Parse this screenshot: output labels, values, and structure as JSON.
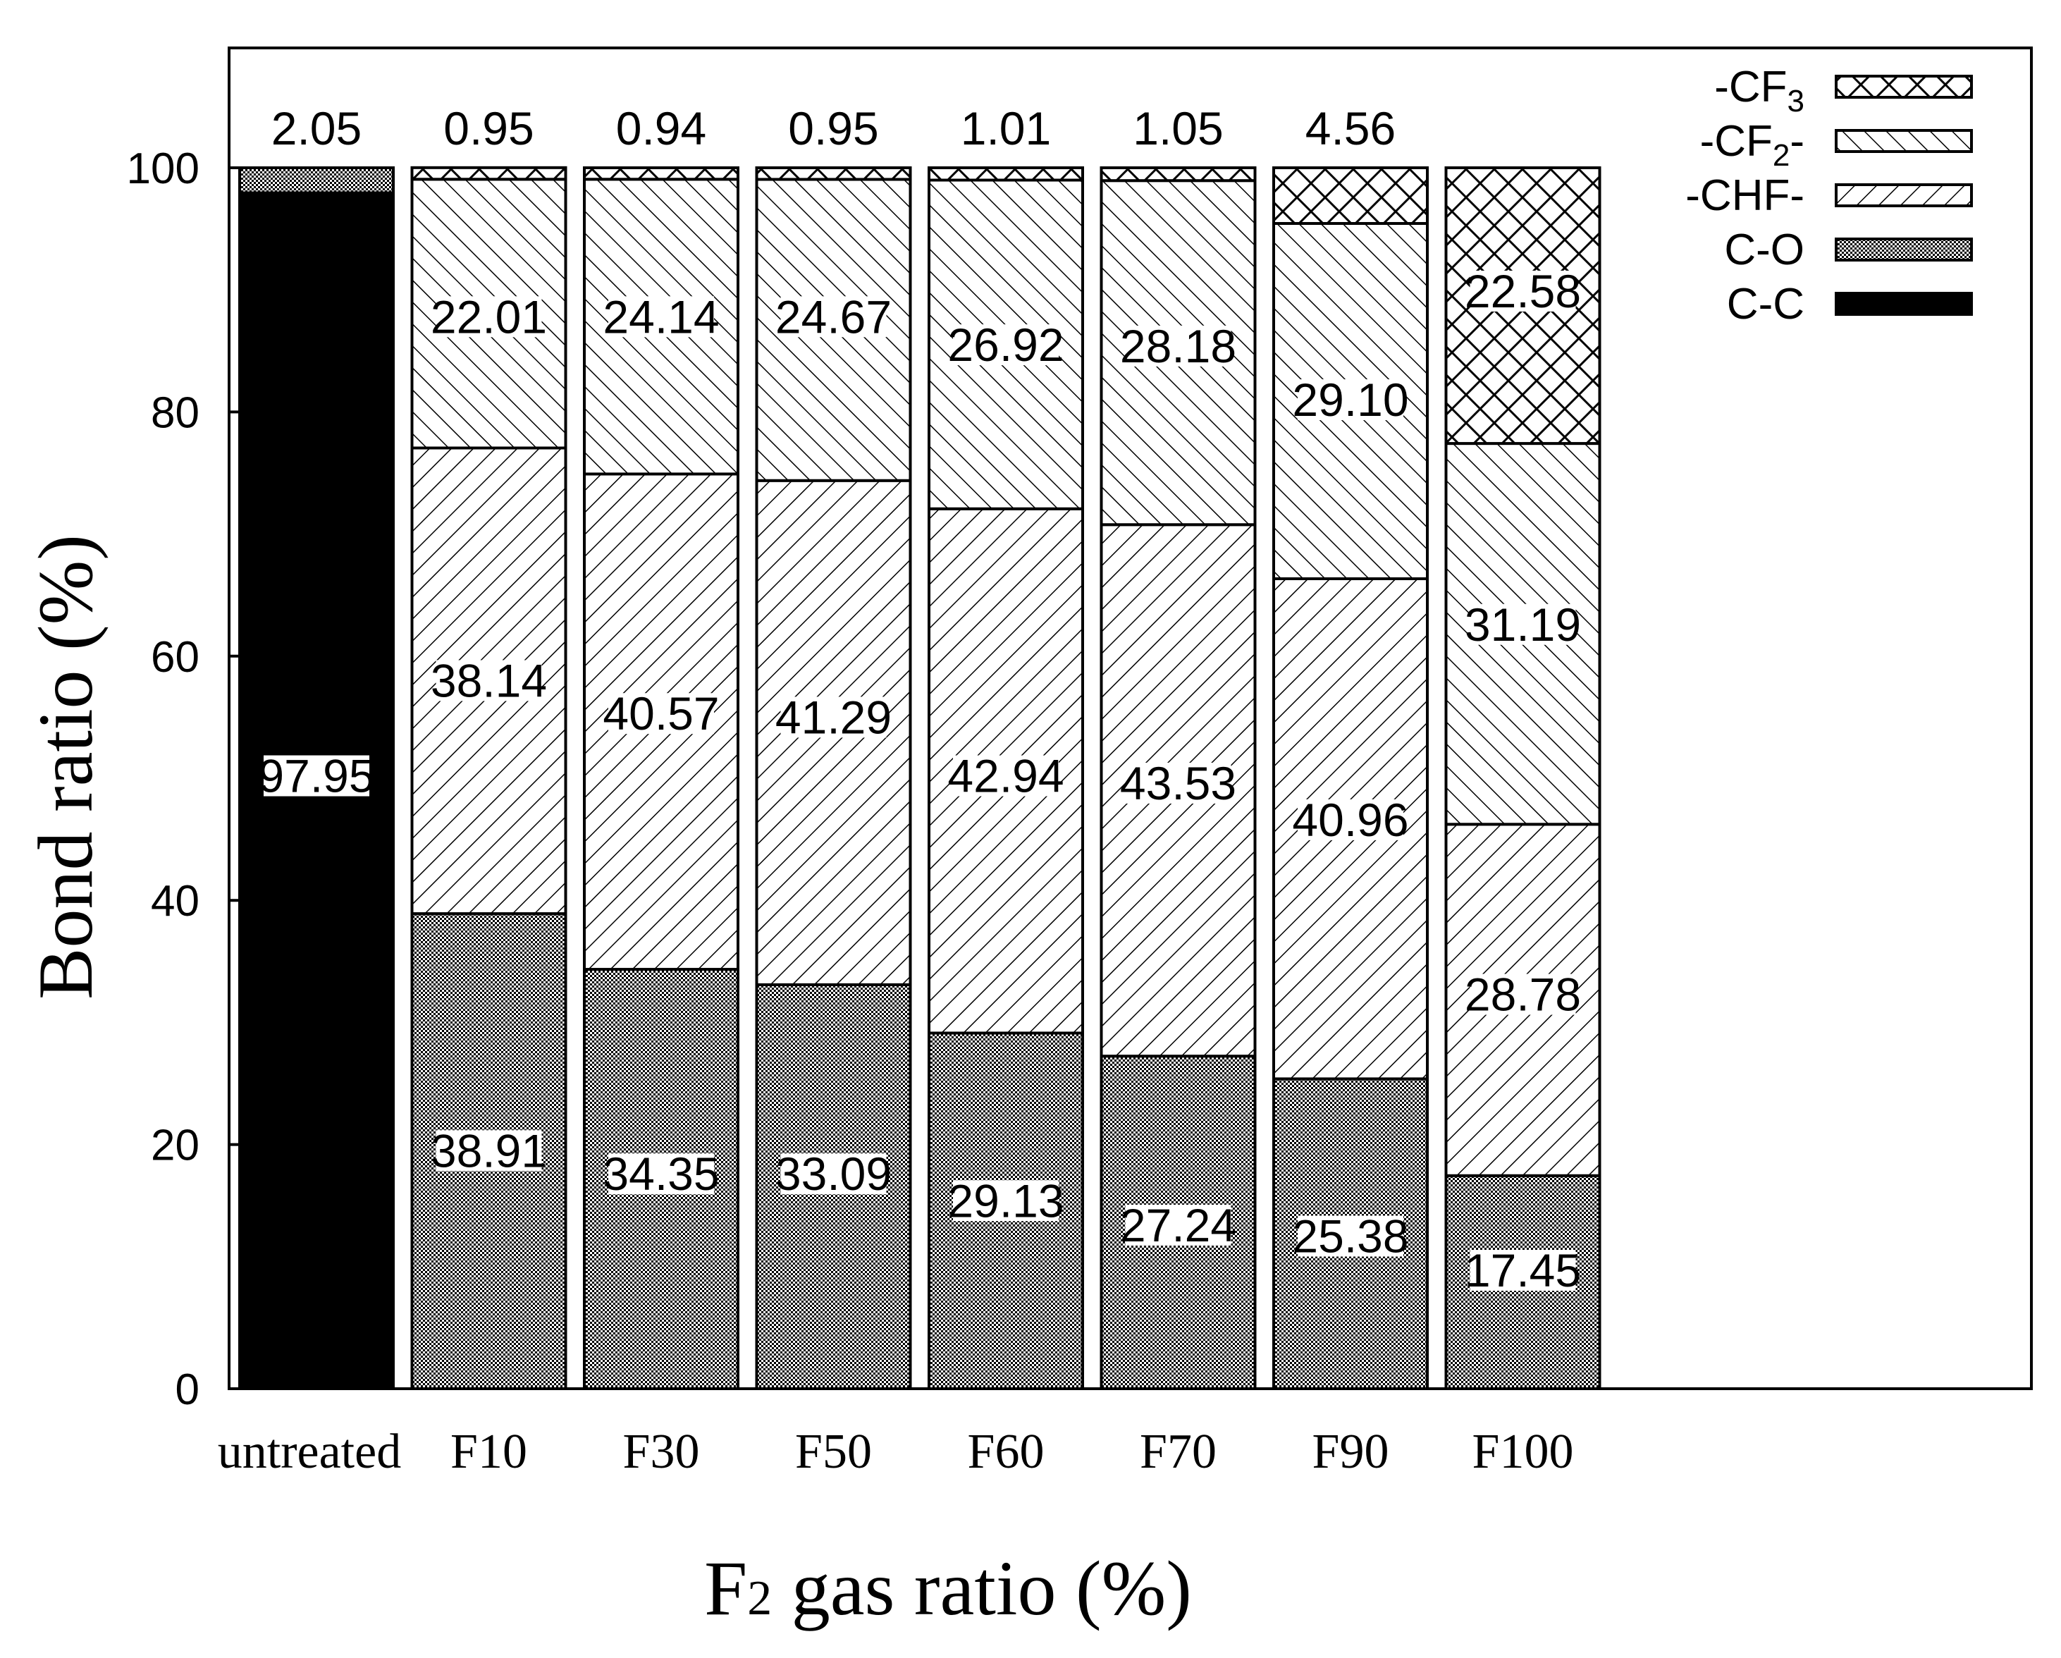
{
  "chart_data": {
    "type": "bar",
    "stacked": true,
    "categories": [
      "untreated",
      "F10",
      "F30",
      "F50",
      "F60",
      "F70",
      "F90",
      "F100"
    ],
    "series": [
      {
        "name": "C-C",
        "pattern": "solid",
        "color": "#000000",
        "values": [
          97.95,
          0,
          0,
          0,
          0,
          0,
          0,
          0
        ]
      },
      {
        "name": "C-O",
        "pattern": "dots",
        "values": [
          2.05,
          38.91,
          34.35,
          33.09,
          29.13,
          27.24,
          25.38,
          17.45
        ]
      },
      {
        "name": "-CHF-",
        "pattern": "hatch-right",
        "values": [
          0,
          38.14,
          40.57,
          41.29,
          42.94,
          43.53,
          40.96,
          28.78
        ]
      },
      {
        "name": "-CF2-",
        "pattern": "hatch-left",
        "values": [
          0,
          22.01,
          24.14,
          24.67,
          26.92,
          28.18,
          29.1,
          31.19
        ]
      },
      {
        "name": "-CF3",
        "pattern": "crosshatch",
        "values": [
          0,
          0.95,
          0.94,
          0.95,
          1.01,
          1.05,
          4.56,
          22.58
        ]
      }
    ],
    "segment_labels": [
      [
        {
          "series": "C-C",
          "text": "97.95",
          "at": 50.2
        }
      ],
      [
        {
          "series": "C-O",
          "text": "38.91",
          "at": 19.5
        },
        {
          "series": "-CHF-",
          "text": "38.14",
          "at": 58.0
        },
        {
          "series": "-CF2-",
          "text": "22.01",
          "at": 87.8
        }
      ],
      [
        {
          "series": "C-O",
          "text": "34.35",
          "at": 17.6
        },
        {
          "series": "-CHF-",
          "text": "40.57",
          "at": 55.3
        },
        {
          "series": "-CF2-",
          "text": "24.14",
          "at": 87.8
        }
      ],
      [
        {
          "series": "C-O",
          "text": "33.09",
          "at": 17.6
        },
        {
          "series": "-CHF-",
          "text": "41.29",
          "at": 55.0
        },
        {
          "series": "-CF2-",
          "text": "24.67",
          "at": 87.8
        }
      ],
      [
        {
          "series": "C-O",
          "text": "29.13",
          "at": 15.4
        },
        {
          "series": "-CHF-",
          "text": "42.94",
          "at": 50.2
        },
        {
          "series": "-CF2-",
          "text": "26.92",
          "at": 85.5
        }
      ],
      [
        {
          "series": "C-O",
          "text": "27.24",
          "at": 13.4
        },
        {
          "series": "-CHF-",
          "text": "43.53",
          "at": 49.6
        },
        {
          "series": "-CF2-",
          "text": "28.18",
          "at": 85.4
        }
      ],
      [
        {
          "series": "C-O",
          "text": "25.38",
          "at": 12.5
        },
        {
          "series": "-CHF-",
          "text": "40.96",
          "at": 46.6
        },
        {
          "series": "-CF2-",
          "text": "29.10",
          "at": 81.0
        }
      ],
      [
        {
          "series": "C-O",
          "text": "17.45",
          "at": 9.7
        },
        {
          "series": "-CHF-",
          "text": "28.78",
          "at": 32.3
        },
        {
          "series": "-CF2-",
          "text": "31.19",
          "at": 62.6
        },
        {
          "series": "-CF3",
          "text": "22.58",
          "at": 89.9
        }
      ]
    ],
    "top_labels": [
      "2.05",
      "0.95",
      "0.94",
      "0.95",
      "1.01",
      "1.05",
      "4.56",
      ""
    ],
    "legend": [
      {
        "name": "-CF3",
        "main": "-CF",
        "sub": "3",
        "suffix": "",
        "pattern": "crosshatch"
      },
      {
        "name": "-CF2-",
        "main": "-CF",
        "sub": "2",
        "suffix": "-",
        "pattern": "hatch-left"
      },
      {
        "name": "-CHF-",
        "main": "-CHF-",
        "sub": "",
        "suffix": "",
        "pattern": "hatch-right"
      },
      {
        "name": "C-O",
        "main": "C-O",
        "sub": "",
        "suffix": "",
        "pattern": "dots"
      },
      {
        "name": "C-C",
        "main": "C-C",
        "sub": "",
        "suffix": "",
        "pattern": "solid"
      }
    ],
    "legend_position": "top-right",
    "xlabel": {
      "main": "F",
      "sub": "2",
      "rest": " gas ratio (%)"
    },
    "ylabel": "Bond ratio (%)",
    "yticks": [
      0,
      20,
      40,
      60,
      80,
      100
    ],
    "ylim": [
      0,
      110
    ],
    "grid": false
  }
}
